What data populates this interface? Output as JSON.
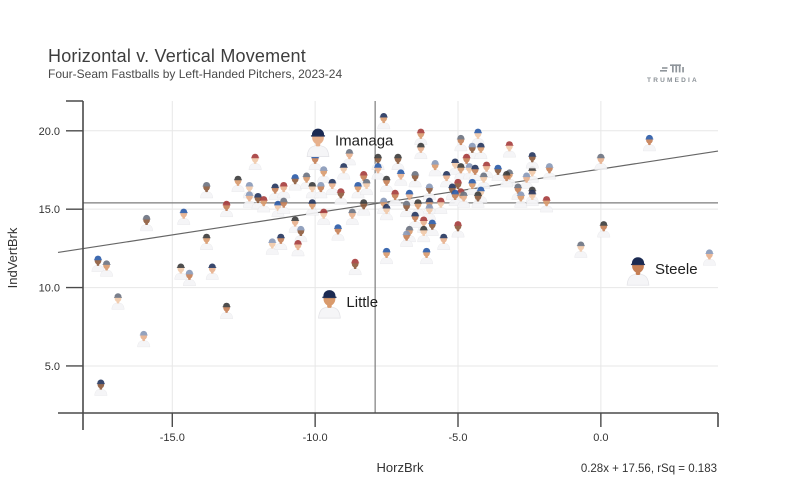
{
  "header": {
    "title": "Horizontal v. Vertical Movement",
    "subtitle": "Four-Seam Fastballs by Left-Handed Pitchers, 2023-24"
  },
  "branding": {
    "logo_text": "TRUMEDIA"
  },
  "colors": {
    "background": "#ffffff",
    "grid": "#e7e7e7",
    "axis": "#4a4a4a",
    "reference_line": "#7d7d7d",
    "trend_line": "#666666",
    "text": "#333333",
    "label_text": "#1f1f1f",
    "logo_gray": "#8f959b",
    "jersey": "#f5f5f7",
    "cap_palette": [
      "#24355e",
      "#a63b3b",
      "#2a5aa8",
      "#6b7280",
      "#3b3b3b",
      "#8898b8"
    ],
    "skin_palette": [
      "#e7b08c",
      "#d99a6c",
      "#c67f55",
      "#8d5a3b",
      "#f0c8a8"
    ],
    "featured_cap": "#1b2a52"
  },
  "chart_data": {
    "type": "scatter",
    "title": "Horizontal v. Vertical Movement",
    "subtitle": "Four-Seam Fastballs by Left-Handed Pitchers, 2023-24",
    "xlabel": "HorzBrk",
    "ylabel": "IndVertBrk",
    "xlim": [
      -19.0,
      4.1
    ],
    "ylim": [
      2.0,
      21.9
    ],
    "xticks": [
      -15.0,
      -10.0,
      -5.0,
      0.0
    ],
    "xtick_labels": [
      "-15.0",
      "-10.0",
      "-5.0",
      "0.0"
    ],
    "yticks": [
      5.0,
      10.0,
      15.0,
      20.0
    ],
    "ytick_labels": [
      "5.0",
      "10.0",
      "15.0",
      "20.0"
    ],
    "grid": true,
    "legend": "none",
    "reference_lines": {
      "x_avg": -7.9,
      "y_avg": 15.4
    },
    "trend": {
      "slope": 0.28,
      "intercept": 17.56,
      "rsq": 0.183,
      "label": "0.28x + 17.56, rSq = 0.183"
    },
    "labeled_points": [
      {
        "label": "Imanaga",
        "x": -9.9,
        "y": 19.2
      },
      {
        "label": "Little",
        "x": -9.5,
        "y": 8.9
      },
      {
        "label": "Steele",
        "x": 1.3,
        "y": 11.0
      }
    ],
    "points": [
      [
        -7.6,
        20.6
      ],
      [
        -12.1,
        18.0
      ],
      [
        -10.0,
        18.0
      ],
      [
        -8.8,
        18.3
      ],
      [
        -7.8,
        18.0
      ],
      [
        -9.7,
        17.2
      ],
      [
        -9.0,
        17.4
      ],
      [
        -8.3,
        16.9
      ],
      [
        -7.8,
        17.4
      ],
      [
        -13.8,
        16.2
      ],
      [
        -12.7,
        16.6
      ],
      [
        -12.3,
        16.2
      ],
      [
        -11.4,
        16.1
      ],
      [
        -11.1,
        16.2
      ],
      [
        -10.7,
        16.7
      ],
      [
        -10.3,
        16.8
      ],
      [
        -10.1,
        16.2
      ],
      [
        -9.8,
        16.2
      ],
      [
        -9.4,
        16.4
      ],
      [
        -9.1,
        15.8
      ],
      [
        -8.5,
        16.2
      ],
      [
        -8.2,
        16.4
      ],
      [
        -7.5,
        16.6
      ],
      [
        -12.3,
        15.6
      ],
      [
        -12.0,
        15.5
      ],
      [
        -11.8,
        15.3
      ],
      [
        -11.3,
        15.0
      ],
      [
        -11.1,
        15.2
      ],
      [
        -10.7,
        14.0
      ],
      [
        -10.5,
        13.4
      ],
      [
        -10.1,
        15.1
      ],
      [
        -9.7,
        14.5
      ],
      [
        -9.2,
        13.5
      ],
      [
        -8.7,
        14.5
      ],
      [
        -8.3,
        15.1
      ],
      [
        -7.6,
        15.2
      ],
      [
        -7.5,
        14.8
      ],
      [
        -13.1,
        15.0
      ],
      [
        -14.6,
        14.5
      ],
      [
        -15.9,
        14.1
      ],
      [
        -13.8,
        12.9
      ],
      [
        -11.5,
        12.6
      ],
      [
        -11.2,
        12.9
      ],
      [
        -10.6,
        12.5
      ],
      [
        -17.6,
        11.5
      ],
      [
        -17.3,
        11.2
      ],
      [
        -14.7,
        11.0
      ],
      [
        -14.4,
        10.6
      ],
      [
        -13.6,
        11.0
      ],
      [
        -8.6,
        11.3
      ],
      [
        -7.5,
        12.0
      ],
      [
        -16.9,
        9.1
      ],
      [
        -13.1,
        8.5
      ],
      [
        -16.0,
        6.7
      ],
      [
        -17.5,
        3.6
      ],
      [
        -6.3,
        19.6
      ],
      [
        -4.3,
        19.6
      ],
      [
        -4.9,
        19.2
      ],
      [
        -6.3,
        18.7
      ],
      [
        -4.5,
        18.7
      ],
      [
        -4.2,
        18.7
      ],
      [
        -3.2,
        18.8
      ],
      [
        1.7,
        19.2
      ],
      [
        0.0,
        18.0
      ],
      [
        -7.1,
        18.0
      ],
      [
        -5.8,
        17.6
      ],
      [
        -5.1,
        17.7
      ],
      [
        -4.7,
        18.0
      ],
      [
        -7.0,
        17.0
      ],
      [
        -6.5,
        16.9
      ],
      [
        -4.9,
        17.4
      ],
      [
        -4.6,
        17.4
      ],
      [
        -4.4,
        17.3
      ],
      [
        -4.0,
        17.5
      ],
      [
        -3.6,
        17.3
      ],
      [
        -3.2,
        17.0
      ],
      [
        -2.4,
        17.2
      ],
      [
        -1.8,
        17.4
      ],
      [
        -5.4,
        16.9
      ],
      [
        -5.0,
        16.4
      ],
      [
        -4.5,
        16.4
      ],
      [
        -4.1,
        16.8
      ],
      [
        -3.3,
        16.9
      ],
      [
        -2.6,
        16.8
      ],
      [
        -5.2,
        16.1
      ],
      [
        -4.9,
        15.8
      ],
      [
        -4.2,
        15.9
      ],
      [
        -2.9,
        16.1
      ],
      [
        -2.4,
        15.9
      ],
      [
        -6.0,
        16.1
      ],
      [
        -6.0,
        15.2
      ],
      [
        -5.6,
        15.2
      ],
      [
        -5.1,
        15.7
      ],
      [
        -4.8,
        15.6
      ],
      [
        -4.3,
        15.6
      ],
      [
        -2.8,
        15.6
      ],
      [
        -2.4,
        15.7
      ],
      [
        -7.2,
        15.7
      ],
      [
        -6.7,
        15.7
      ],
      [
        -6.8,
        15.0
      ],
      [
        -6.4,
        15.1
      ],
      [
        -6.0,
        14.8
      ],
      [
        -6.5,
        14.3
      ],
      [
        -6.2,
        14.0
      ],
      [
        -5.9,
        13.8
      ],
      [
        -6.7,
        13.4
      ],
      [
        -6.2,
        13.4
      ],
      [
        -6.8,
        13.1
      ],
      [
        -5.5,
        12.9
      ],
      [
        -5.0,
        13.7
      ],
      [
        -6.1,
        12.0
      ],
      [
        -0.7,
        12.4
      ],
      [
        0.1,
        13.7
      ],
      [
        3.8,
        11.9
      ],
      [
        -2.4,
        18.1
      ],
      [
        -1.9,
        15.3
      ]
    ]
  }
}
